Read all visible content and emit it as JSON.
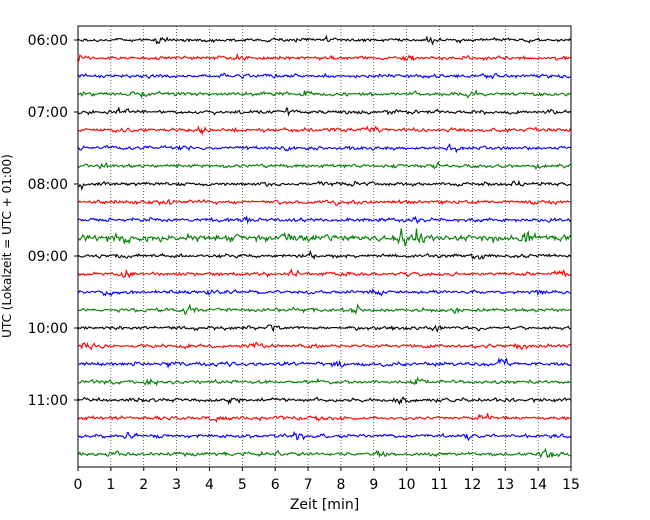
{
  "chart_data": {
    "type": "line",
    "title": "",
    "xlabel": "Zeit  [min]",
    "ylabel": "UTC (Lokalzeit = UTC + 01:00)",
    "xlim": [
      0,
      15
    ],
    "x_ticks": [
      0,
      1,
      2,
      3,
      4,
      5,
      6,
      7,
      8,
      9,
      10,
      11,
      12,
      13,
      14,
      15
    ],
    "y_tick_labels": [
      "06:00",
      "07:00",
      "08:00",
      "09:00",
      "10:00",
      "11:00"
    ],
    "y_tick_trace_index": [
      0,
      4,
      8,
      12,
      16,
      20
    ],
    "grid": "vertical dotted",
    "trace_interval_minutes": 15,
    "trace_count": 24,
    "trace_colors": [
      "#000000",
      "#ff0000",
      "#0000ff",
      "#008000"
    ],
    "traces_start": "06:00",
    "notable_events": [
      {
        "trace_start": "08:45",
        "minutes": [
          1.0,
          1.4,
          6.3,
          9.9,
          10.3,
          13.7
        ],
        "description_color": "#008000"
      }
    ]
  }
}
